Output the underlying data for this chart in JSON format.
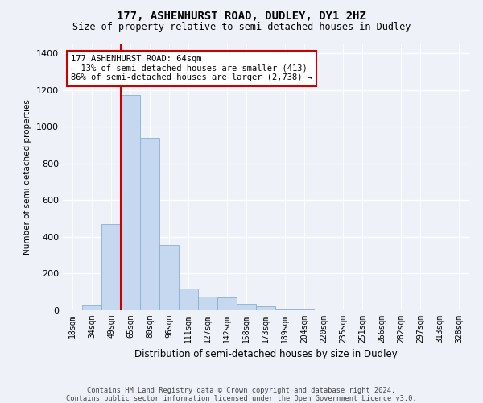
{
  "title": "177, ASHENHURST ROAD, DUDLEY, DY1 2HZ",
  "subtitle": "Size of property relative to semi-detached houses in Dudley",
  "xlabel": "Distribution of semi-detached houses by size in Dudley",
  "ylabel": "Number of semi-detached properties",
  "footnote1": "Contains HM Land Registry data © Crown copyright and database right 2024.",
  "footnote2": "Contains public sector information licensed under the Open Government Licence v3.0.",
  "annotation_line1": "177 ASHENHURST ROAD: 64sqm",
  "annotation_line2": "← 13% of semi-detached houses are smaller (413)",
  "annotation_line3": "86% of semi-detached houses are larger (2,738) →",
  "bar_color": "#c5d8ef",
  "bar_edge_color": "#8ab0d0",
  "highlight_line_color": "#cc0000",
  "background_color": "#eef2f8",
  "plot_bg_color": "#eef2f8",
  "categories": [
    "18sqm",
    "34sqm",
    "49sqm",
    "65sqm",
    "80sqm",
    "96sqm",
    "111sqm",
    "127sqm",
    "142sqm",
    "158sqm",
    "173sqm",
    "189sqm",
    "204sqm",
    "220sqm",
    "235sqm",
    "251sqm",
    "266sqm",
    "282sqm",
    "297sqm",
    "313sqm",
    "328sqm"
  ],
  "values": [
    5,
    25,
    470,
    1175,
    940,
    355,
    120,
    75,
    70,
    35,
    20,
    10,
    8,
    5,
    3,
    2,
    1,
    0,
    0,
    0,
    0
  ],
  "highlight_bar_index": 3,
  "ylim": [
    0,
    1450
  ],
  "yticks": [
    0,
    200,
    400,
    600,
    800,
    1000,
    1200,
    1400
  ]
}
